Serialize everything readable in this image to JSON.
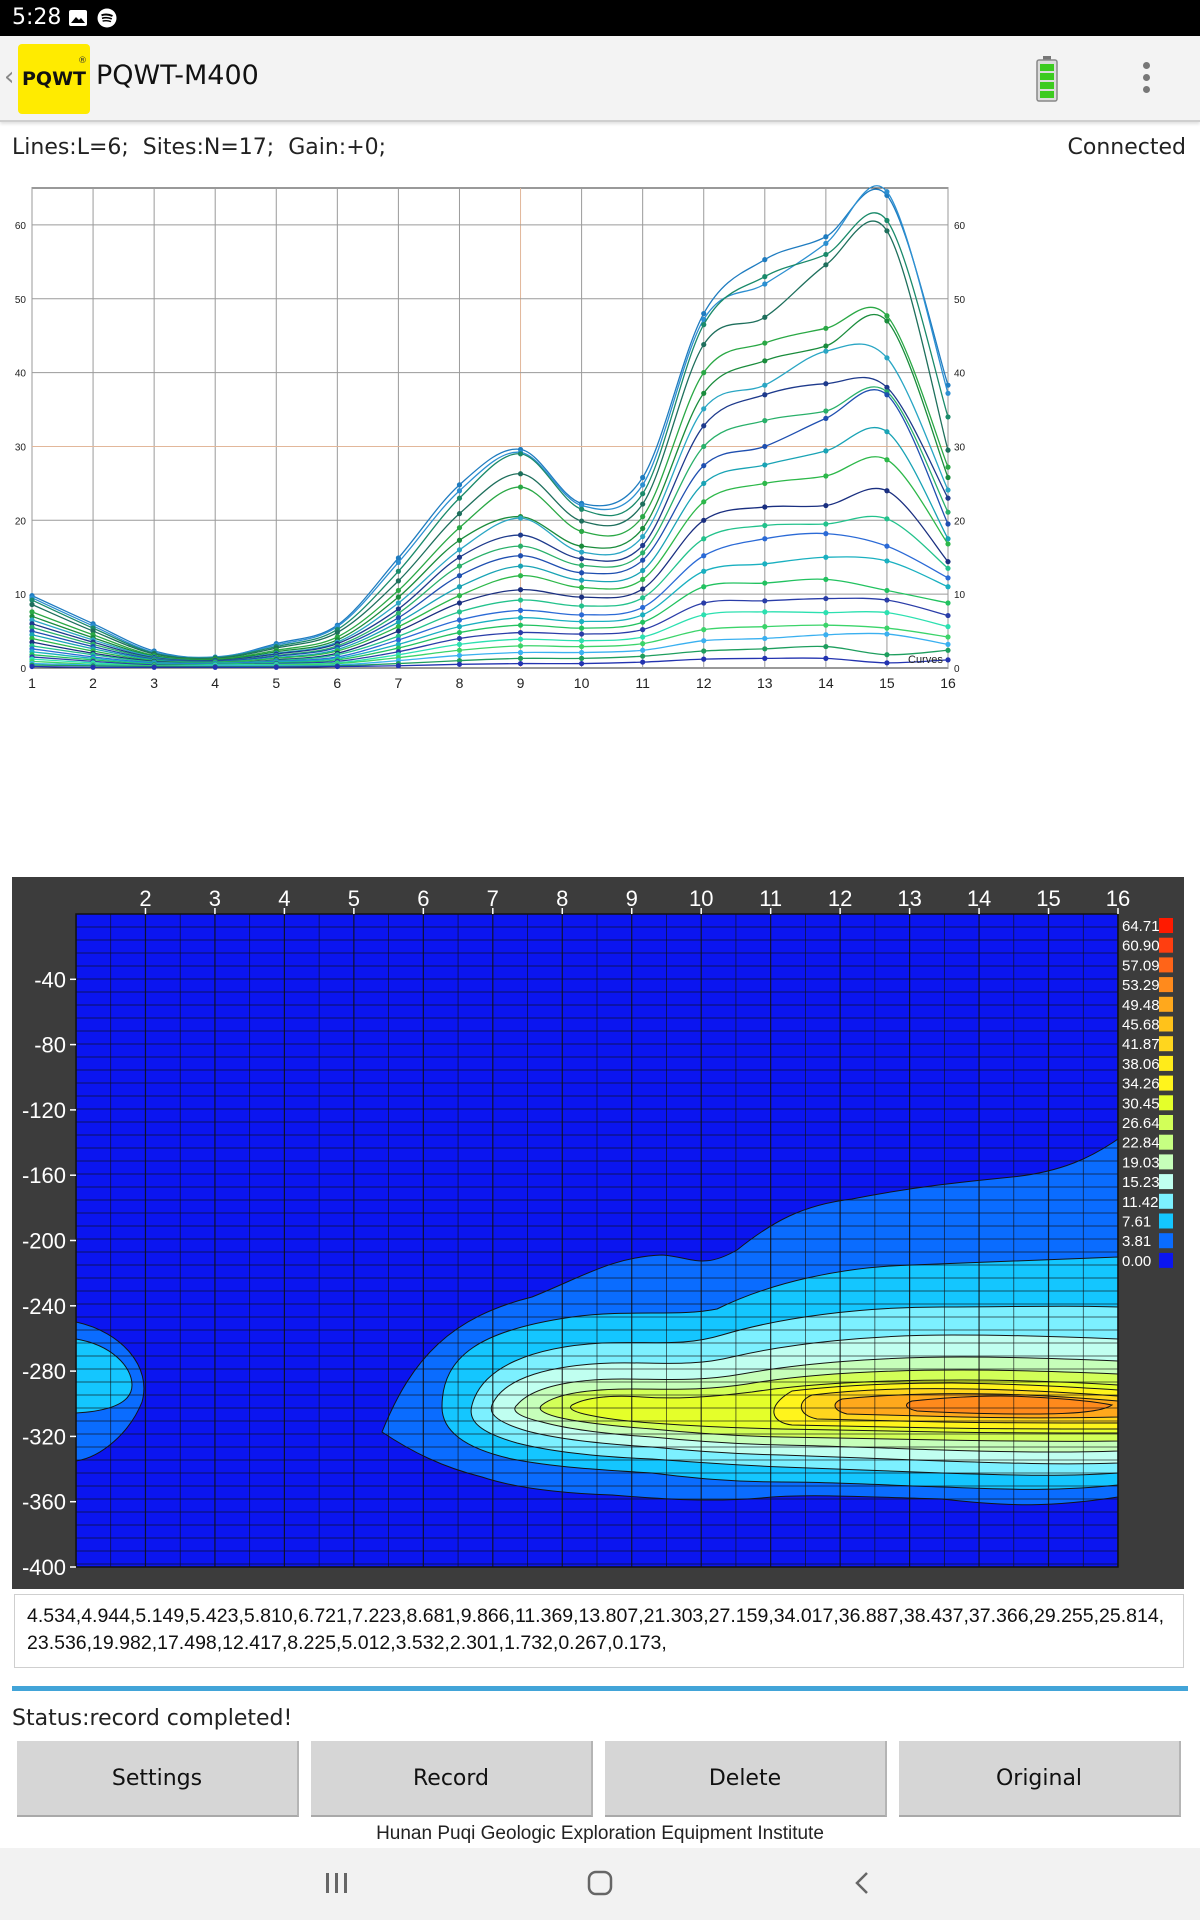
{
  "status_bar": {
    "time": "5:28",
    "icons": [
      "image-icon",
      "spotify-icon"
    ]
  },
  "app_bar": {
    "back_icon": "chevron-left-icon",
    "logo_text": "PQWT",
    "logo_mark": "®",
    "title": "PQWT-M400",
    "battery_icon": "battery-full-icon",
    "menu_icon": "overflow-menu-icon"
  },
  "info": {
    "params": "Lines:L=6;  Sites:N=17;  Gain:+0;",
    "connection": "Connected"
  },
  "colors": {
    "accent": "#42a4d8",
    "contour_bg": "#3c3c3c",
    "plot_blue": "#0b15f0"
  },
  "chart_data": [
    {
      "type": "line",
      "x": [
        1,
        2,
        3,
        4,
        5,
        6,
        7,
        8,
        9,
        10,
        11,
        12,
        13,
        14,
        15,
        16
      ],
      "xlim": [
        1,
        16
      ],
      "ylim": [
        0,
        65
      ],
      "y_ticks": [
        0,
        10,
        20,
        30,
        40,
        50,
        60
      ],
      "legend": "Curves",
      "grid": true,
      "series": [
        {
          "values": [
            9.8,
            6.0,
            2.3,
            1.4,
            3.3,
            5.8,
            14.9,
            24.8,
            29.6,
            22.3,
            25.8,
            48.0,
            55.3,
            58.4,
            64.0,
            38.3
          ]
        },
        {
          "values": [
            9.5,
            5.7,
            2.1,
            1.5,
            3.1,
            5.6,
            14.3,
            24.0,
            29.2,
            22.0,
            24.8,
            47.2,
            52.0,
            57.5,
            64.5,
            37.2
          ]
        },
        {
          "values": [
            9.2,
            5.4,
            2.0,
            1.4,
            2.9,
            5.2,
            13.1,
            23.0,
            29.0,
            21.5,
            23.6,
            46.5,
            53.0,
            56.0,
            60.6,
            34.0
          ]
        },
        {
          "values": [
            8.6,
            5.0,
            1.9,
            1.3,
            2.7,
            4.8,
            11.8,
            20.9,
            26.3,
            19.9,
            22.2,
            43.8,
            47.5,
            54.6,
            59.2,
            29.5
          ]
        },
        {
          "values": [
            7.6,
            4.5,
            1.7,
            1.2,
            2.4,
            4.2,
            10.5,
            19.0,
            24.5,
            18.5,
            20.5,
            40.0,
            44.0,
            46.0,
            47.7,
            27.2
          ]
        },
        {
          "values": [
            7.0,
            4.1,
            1.6,
            1.1,
            2.2,
            3.8,
            9.6,
            17.3,
            20.5,
            16.5,
            18.9,
            37.2,
            41.6,
            43.6,
            47.0,
            25.8
          ]
        },
        {
          "values": [
            6.5,
            3.8,
            1.5,
            1.0,
            2.0,
            3.5,
            8.8,
            16.0,
            20.3,
            15.7,
            17.8,
            35.1,
            38.3,
            42.9,
            42.0,
            24.1
          ]
        },
        {
          "values": [
            6.0,
            3.5,
            1.4,
            1.0,
            1.9,
            3.3,
            8.0,
            15.0,
            18.0,
            14.8,
            16.6,
            32.8,
            37.0,
            38.5,
            38.0,
            23.0
          ]
        },
        {
          "values": [
            5.5,
            3.2,
            1.3,
            0.9,
            1.7,
            3.0,
            7.4,
            13.8,
            16.5,
            13.9,
            15.6,
            30.0,
            33.5,
            34.8,
            37.4,
            21.1
          ]
        },
        {
          "values": [
            5.0,
            2.9,
            1.2,
            0.9,
            1.6,
            2.8,
            6.8,
            12.5,
            15.2,
            12.9,
            14.6,
            27.4,
            30.0,
            33.8,
            37.0,
            19.5
          ]
        },
        {
          "values": [
            4.5,
            2.6,
            1.1,
            0.8,
            1.4,
            2.5,
            6.2,
            11.0,
            13.8,
            11.9,
            13.2,
            25.0,
            27.5,
            29.4,
            32.0,
            17.5
          ]
        },
        {
          "values": [
            4.0,
            2.3,
            1.0,
            0.8,
            1.3,
            2.3,
            5.6,
            9.8,
            12.5,
            10.9,
            12.0,
            22.5,
            25.0,
            26.0,
            28.2,
            16.8
          ]
        },
        {
          "values": [
            3.5,
            2.0,
            0.9,
            0.7,
            1.1,
            2.0,
            5.0,
            8.8,
            10.6,
            9.6,
            10.7,
            20.0,
            21.8,
            22.0,
            24.0,
            14.4
          ]
        },
        {
          "values": [
            3.0,
            1.8,
            0.8,
            0.7,
            1.0,
            1.8,
            4.3,
            7.6,
            9.2,
            8.4,
            9.5,
            17.5,
            19.3,
            19.5,
            20.2,
            13.5
          ]
        },
        {
          "values": [
            2.6,
            1.5,
            0.7,
            0.6,
            0.9,
            1.5,
            3.8,
            6.5,
            7.8,
            7.2,
            8.2,
            15.2,
            17.5,
            18.2,
            16.5,
            12.2
          ]
        },
        {
          "values": [
            2.2,
            1.3,
            0.6,
            0.5,
            0.8,
            1.3,
            3.2,
            5.6,
            6.8,
            6.3,
            7.2,
            13.1,
            14.1,
            15.0,
            14.5,
            11.0
          ]
        },
        {
          "values": [
            1.8,
            1.1,
            0.5,
            0.5,
            0.7,
            1.1,
            2.7,
            4.8,
            5.8,
            5.4,
            6.2,
            11.0,
            11.5,
            12.0,
            10.5,
            8.8
          ]
        },
        {
          "values": [
            1.5,
            0.9,
            0.4,
            0.4,
            0.6,
            0.9,
            2.2,
            4.0,
            4.8,
            4.6,
            5.2,
            8.8,
            9.1,
            9.4,
            9.2,
            7.1
          ]
        },
        {
          "values": [
            1.2,
            0.7,
            0.3,
            0.4,
            0.5,
            0.7,
            1.8,
            3.2,
            3.9,
            3.7,
            4.2,
            7.2,
            7.6,
            7.5,
            7.5,
            5.6
          ]
        },
        {
          "values": [
            0.9,
            0.5,
            0.3,
            0.3,
            0.4,
            0.6,
            1.4,
            2.4,
            3.0,
            2.9,
            3.3,
            5.2,
            5.6,
            5.8,
            5.4,
            4.2
          ]
        },
        {
          "values": [
            0.6,
            0.4,
            0.2,
            0.3,
            0.3,
            0.4,
            1.0,
            1.7,
            2.1,
            2.1,
            2.4,
            3.7,
            4.0,
            4.5,
            4.6,
            3.2
          ]
        },
        {
          "values": [
            0.4,
            0.3,
            0.2,
            0.2,
            0.2,
            0.3,
            0.6,
            1.0,
            1.3,
            1.3,
            1.6,
            2.3,
            2.6,
            2.9,
            1.8,
            2.4
          ]
        },
        {
          "values": [
            0.2,
            0.1,
            0.1,
            0.1,
            0.1,
            0.2,
            0.3,
            0.5,
            0.6,
            0.6,
            0.8,
            1.2,
            1.3,
            1.3,
            0.7,
            1.1
          ]
        }
      ]
    },
    {
      "type": "heatmap",
      "x_ticks": [
        2,
        3,
        4,
        5,
        6,
        7,
        8,
        9,
        10,
        11,
        12,
        13,
        14,
        15,
        16
      ],
      "xlim": [
        1,
        16
      ],
      "y_ticks": [
        -40,
        -80,
        -120,
        -160,
        -200,
        -240,
        -280,
        -320,
        -360,
        -400
      ],
      "ylim": [
        -400,
        0
      ],
      "color_scale": [
        {
          "label": "64.71",
          "color": "#ff1a00"
        },
        {
          "label": "60.90",
          "color": "#ff3e10"
        },
        {
          "label": "57.09",
          "color": "#ff6418"
        },
        {
          "label": "53.29",
          "color": "#ff8a1c"
        },
        {
          "label": "49.48",
          "color": "#ffa81c"
        },
        {
          "label": "45.68",
          "color": "#ffc21a"
        },
        {
          "label": "41.87",
          "color": "#ffd61e"
        },
        {
          "label": "38.06",
          "color": "#ffeb1a"
        },
        {
          "label": "34.26",
          "color": "#fff41c"
        },
        {
          "label": "30.45",
          "color": "#e4ff2a"
        },
        {
          "label": "26.64",
          "color": "#d2ff58"
        },
        {
          "label": "22.84",
          "color": "#c6ff82"
        },
        {
          "label": "19.03",
          "color": "#c6ffba"
        },
        {
          "label": "15.23",
          "color": "#c0fff0"
        },
        {
          "label": "11.42",
          "color": "#7cf0ff"
        },
        {
          "label": "7.61",
          "color": "#14c6ff"
        },
        {
          "label": "3.81",
          "color": "#0a6cff"
        },
        {
          "label": "0.00",
          "color": "#0b15f0"
        }
      ]
    }
  ],
  "data_text": "4.534,4.944,5.149,5.423,5.810,6.721,7.223,8.681,9.866,11.369,13.807,21.303,27.159,34.017,36.887,38.437,37.366,29.255,25.814,23.536,19.982,17.498,12.417,8.225,5.012,3.532,2.301,1.732,0.267,0.173,",
  "status_text": "Status:record completed!",
  "buttons": {
    "settings": "Settings",
    "record": "Record",
    "delete": "Delete",
    "original": "Original"
  },
  "footer": "Hunan Puqi Geologic Exploration Equipment Institute",
  "nav_bar": {
    "recents_icon": "recent-apps-icon",
    "home_icon": "home-icon",
    "back_icon": "back-icon"
  }
}
